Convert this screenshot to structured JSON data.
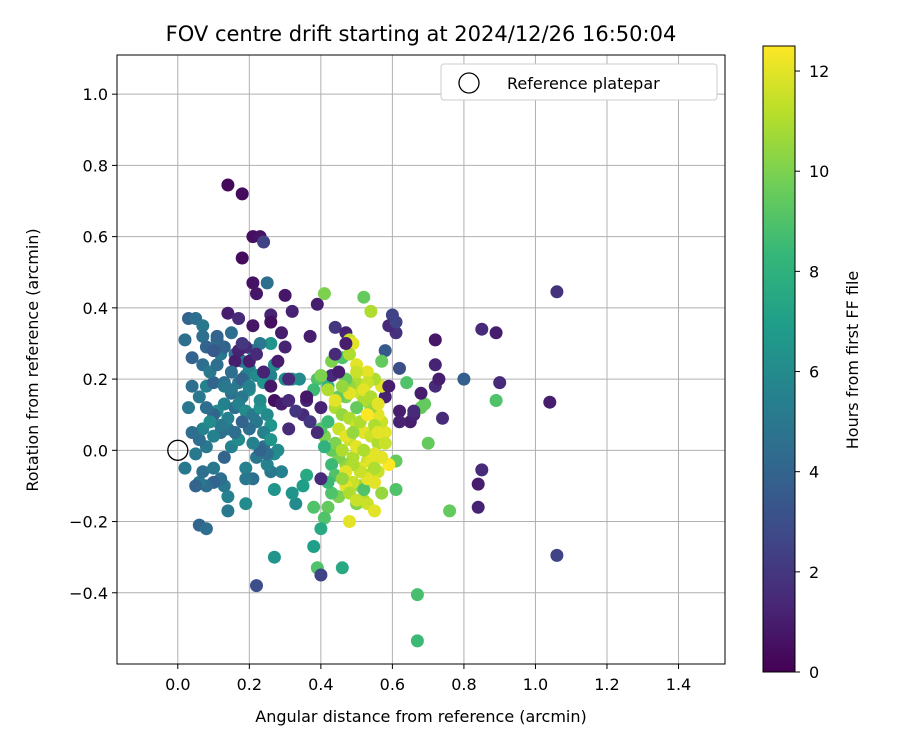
{
  "chart_data": {
    "type": "scatter",
    "title": "FOV centre drift starting at 2024/12/26 16:50:04",
    "xlabel": "Angular distance from reference (arcmin)",
    "ylabel": "Rotation from reference (arcmin)",
    "xlim": [
      -0.17,
      1.53
    ],
    "ylim": [
      -0.6,
      1.11
    ],
    "xticks": [
      0.0,
      0.2,
      0.4,
      0.6,
      0.8,
      1.0,
      1.2,
      1.4
    ],
    "xtick_labels": [
      "0.0",
      "0.2",
      "0.4",
      "0.6",
      "0.8",
      "1.0",
      "1.2",
      "1.4"
    ],
    "yticks": [
      -0.4,
      -0.2,
      0.0,
      0.2,
      0.4,
      0.6,
      0.8,
      1.0
    ],
    "ytick_labels": [
      "−0.4",
      "−0.2",
      "0.0",
      "0.2",
      "0.4",
      "0.6",
      "0.8",
      "1.0"
    ],
    "grid": true,
    "legend": {
      "position": "top-right",
      "label": "Reference platepar"
    },
    "reference_point": {
      "x": 0.0,
      "y": 0.0
    },
    "colorbar": {
      "label": "Hours from first FF file",
      "colormap": "viridis",
      "range": [
        0,
        12.5
      ],
      "ticks": [
        0,
        2,
        4,
        6,
        8,
        10,
        12
      ],
      "tick_labels": [
        "0",
        "2",
        "4",
        "6",
        "8",
        "10",
        "12"
      ]
    },
    "points": [
      [
        0.14,
        0.745,
        0.3
      ],
      [
        0.18,
        0.72,
        0.4
      ],
      [
        0.21,
        0.6,
        0.5
      ],
      [
        0.23,
        0.6,
        0.6
      ],
      [
        0.24,
        0.585,
        2.5
      ],
      [
        0.18,
        0.54,
        0.4
      ],
      [
        0.21,
        0.47,
        0.6
      ],
      [
        0.25,
        0.47,
        4.5
      ],
      [
        0.22,
        0.44,
        0.8
      ],
      [
        0.26,
        0.38,
        1.2
      ],
      [
        0.14,
        0.385,
        1.0
      ],
      [
        0.17,
        0.37,
        1.5
      ],
      [
        0.21,
        0.35,
        0.7
      ],
      [
        0.26,
        0.36,
        0.5
      ],
      [
        0.3,
        0.435,
        0.8
      ],
      [
        0.32,
        0.39,
        1.2
      ],
      [
        0.39,
        0.41,
        1.0
      ],
      [
        0.41,
        0.44,
        10.0
      ],
      [
        0.37,
        0.32,
        1.0
      ],
      [
        0.44,
        0.345,
        2.0
      ],
      [
        0.47,
        0.33,
        1.2
      ],
      [
        0.48,
        0.31,
        11.5
      ],
      [
        0.49,
        0.3,
        12.0
      ],
      [
        0.52,
        0.43,
        9.5
      ],
      [
        0.54,
        0.39,
        11.0
      ],
      [
        0.6,
        0.38,
        2.5
      ],
      [
        0.61,
        0.33,
        1.8
      ],
      [
        0.58,
        0.28,
        3.5
      ],
      [
        0.57,
        0.25,
        9.5
      ],
      [
        0.62,
        0.23,
        3.0
      ],
      [
        0.64,
        0.19,
        9.0
      ],
      [
        0.69,
        0.13,
        9.5
      ],
      [
        0.72,
        0.31,
        0.8
      ],
      [
        0.72,
        0.24,
        1.2
      ],
      [
        0.72,
        0.18,
        1.5
      ],
      [
        0.73,
        0.2,
        1.0
      ],
      [
        0.74,
        0.09,
        1.5
      ],
      [
        0.8,
        0.2,
        3.8
      ],
      [
        0.85,
        0.34,
        1.5
      ],
      [
        0.89,
        0.33,
        1.0
      ],
      [
        0.9,
        0.19,
        1.5
      ],
      [
        0.89,
        0.14,
        9.0
      ],
      [
        1.06,
        0.445,
        1.8
      ],
      [
        1.04,
        0.135,
        1.0
      ],
      [
        0.85,
        -0.055,
        1.5
      ],
      [
        0.84,
        -0.095,
        1.0
      ],
      [
        0.84,
        -0.16,
        1.2
      ],
      [
        1.06,
        -0.295,
        2.5
      ],
      [
        0.76,
        -0.17,
        9.5
      ],
      [
        0.67,
        -0.405,
        8.8
      ],
      [
        0.67,
        -0.535,
        8.5
      ],
      [
        0.7,
        0.02,
        9.5
      ],
      [
        0.68,
        0.12,
        9.5
      ],
      [
        0.65,
        0.08,
        1.0
      ],
      [
        0.66,
        0.1,
        1.2
      ],
      [
        0.62,
        0.11,
        1.0
      ],
      [
        0.61,
        -0.03,
        9.5
      ],
      [
        0.61,
        -0.11,
        9.0
      ],
      [
        0.58,
        0.15,
        1.2
      ],
      [
        0.57,
        0.18,
        12.0
      ],
      [
        0.55,
        0.2,
        11.0
      ],
      [
        0.53,
        0.22,
        12.0
      ],
      [
        0.51,
        0.16,
        11.5
      ],
      [
        0.5,
        0.19,
        11.0
      ],
      [
        0.48,
        0.18,
        10.5
      ],
      [
        0.47,
        0.15,
        10.0
      ],
      [
        0.45,
        0.15,
        9.5
      ],
      [
        0.44,
        0.12,
        11.0
      ],
      [
        0.46,
        0.1,
        10.5
      ],
      [
        0.48,
        0.09,
        11.0
      ],
      [
        0.5,
        0.07,
        11.5
      ],
      [
        0.52,
        0.05,
        12.0
      ],
      [
        0.54,
        0.04,
        11.5
      ],
      [
        0.56,
        0.02,
        11.0
      ],
      [
        0.55,
        -0.01,
        12.0
      ],
      [
        0.53,
        -0.03,
        11.5
      ],
      [
        0.51,
        -0.05,
        12.0
      ],
      [
        0.49,
        -0.02,
        11.0
      ],
      [
        0.47,
        -0.04,
        10.5
      ],
      [
        0.45,
        -0.02,
        10.0
      ],
      [
        0.43,
        0.0,
        9.5
      ],
      [
        0.41,
        0.04,
        10.0
      ],
      [
        0.4,
        0.06,
        9.0
      ],
      [
        0.42,
        0.08,
        8.5
      ],
      [
        0.44,
        0.02,
        10.0
      ],
      [
        0.46,
        0.0,
        11.0
      ],
      [
        0.48,
        0.03,
        11.5
      ],
      [
        0.5,
        0.01,
        12.0
      ],
      [
        0.52,
        0.0,
        11.0
      ],
      [
        0.54,
        -0.03,
        12.0
      ],
      [
        0.56,
        -0.06,
        11.5
      ],
      [
        0.55,
        -0.09,
        12.0
      ],
      [
        0.53,
        -0.07,
        11.0
      ],
      [
        0.51,
        -0.1,
        10.5
      ],
      [
        0.49,
        -0.09,
        11.5
      ],
      [
        0.47,
        -0.1,
        12.0
      ],
      [
        0.45,
        -0.13,
        10.0
      ],
      [
        0.43,
        -0.12,
        9.0
      ],
      [
        0.42,
        -0.16,
        9.5
      ],
      [
        0.41,
        -0.19,
        9.0
      ],
      [
        0.4,
        -0.22,
        7.5
      ],
      [
        0.38,
        -0.27,
        7.0
      ],
      [
        0.39,
        -0.33,
        9.0
      ],
      [
        0.4,
        -0.35,
        2.5
      ],
      [
        0.46,
        -0.33,
        7.5
      ],
      [
        0.48,
        -0.2,
        12.0
      ],
      [
        0.5,
        -0.15,
        10.0
      ],
      [
        0.52,
        -0.14,
        11.0
      ],
      [
        0.53,
        -0.15,
        11.5
      ],
      [
        0.55,
        -0.17,
        12.0
      ],
      [
        0.52,
        -0.11,
        9.0
      ],
      [
        0.57,
        -0.12,
        10.5
      ],
      [
        0.59,
        -0.04,
        12.5
      ],
      [
        0.58,
        0.05,
        12.0
      ],
      [
        0.57,
        0.08,
        11.5
      ],
      [
        0.56,
        0.1,
        12.0
      ],
      [
        0.54,
        0.12,
        10.5
      ],
      [
        0.52,
        0.14,
        11.0
      ],
      [
        0.5,
        0.12,
        9.5
      ],
      [
        0.47,
        0.2,
        9.5
      ],
      [
        0.43,
        0.25,
        10.0
      ],
      [
        0.46,
        0.26,
        9.0
      ],
      [
        0.48,
        0.27,
        11.0
      ],
      [
        0.5,
        0.24,
        12.0
      ],
      [
        0.53,
        0.19,
        11.5
      ],
      [
        0.42,
        0.18,
        8.0
      ],
      [
        0.39,
        0.2,
        9.0
      ],
      [
        0.38,
        0.17,
        8.5
      ],
      [
        0.36,
        0.14,
        1.2
      ],
      [
        0.35,
        0.1,
        1.5
      ],
      [
        0.37,
        0.08,
        2.0
      ],
      [
        0.39,
        0.05,
        1.5
      ],
      [
        0.41,
        0.01,
        8.0
      ],
      [
        0.43,
        -0.04,
        8.5
      ],
      [
        0.44,
        -0.07,
        9.0
      ],
      [
        0.42,
        -0.09,
        8.5
      ],
      [
        0.4,
        -0.08,
        1.5
      ],
      [
        0.38,
        -0.16,
        9.0
      ],
      [
        0.36,
        -0.07,
        7.5
      ],
      [
        0.35,
        -0.1,
        7.0
      ],
      [
        0.33,
        -0.15,
        6.0
      ],
      [
        0.32,
        -0.12,
        6.5
      ],
      [
        0.29,
        -0.06,
        5.5
      ],
      [
        0.27,
        -0.11,
        6.5
      ],
      [
        0.26,
        -0.06,
        5.0
      ],
      [
        0.25,
        -0.04,
        5.5
      ],
      [
        0.27,
        -0.01,
        6.0
      ],
      [
        0.24,
        0.01,
        4.5
      ],
      [
        0.22,
        -0.02,
        5.0
      ],
      [
        0.21,
        -0.08,
        4.5
      ],
      [
        0.19,
        -0.05,
        5.5
      ],
      [
        0.19,
        -0.15,
        6.0
      ],
      [
        0.22,
        -0.38,
        3.0
      ],
      [
        0.27,
        -0.3,
        6.5
      ],
      [
        0.14,
        -0.17,
        5.0
      ],
      [
        0.14,
        -0.13,
        5.5
      ],
      [
        0.13,
        -0.1,
        5.0
      ],
      [
        0.12,
        -0.08,
        4.5
      ],
      [
        0.1,
        -0.09,
        4.0
      ],
      [
        0.08,
        -0.1,
        4.5
      ],
      [
        0.06,
        -0.09,
        5.0
      ],
      [
        0.05,
        -0.1,
        4.0
      ],
      [
        0.07,
        -0.06,
        4.5
      ],
      [
        0.1,
        -0.05,
        5.0
      ],
      [
        0.13,
        -0.02,
        4.0
      ],
      [
        0.15,
        0.01,
        5.5
      ],
      [
        0.17,
        0.03,
        6.0
      ],
      [
        0.14,
        0.06,
        5.0
      ],
      [
        0.12,
        0.05,
        4.5
      ],
      [
        0.1,
        0.04,
        5.5
      ],
      [
        0.08,
        0.01,
        5.0
      ],
      [
        0.06,
        0.03,
        4.5
      ],
      [
        0.07,
        0.06,
        5.5
      ],
      [
        0.09,
        0.08,
        5.0
      ],
      [
        0.11,
        0.11,
        6.0
      ],
      [
        0.13,
        0.13,
        5.5
      ],
      [
        0.15,
        0.16,
        4.5
      ],
      [
        0.17,
        0.19,
        5.0
      ],
      [
        0.19,
        0.21,
        5.5
      ],
      [
        0.2,
        0.17,
        6.0
      ],
      [
        0.18,
        0.15,
        5.0
      ],
      [
        0.16,
        0.12,
        4.5
      ],
      [
        0.14,
        0.09,
        5.5
      ],
      [
        0.12,
        0.07,
        5.0
      ],
      [
        0.1,
        0.1,
        4.0
      ],
      [
        0.08,
        0.12,
        4.5
      ],
      [
        0.06,
        0.15,
        5.0
      ],
      [
        0.04,
        0.18,
        4.5
      ],
      [
        0.03,
        0.12,
        5.0
      ],
      [
        0.08,
        0.18,
        5.5
      ],
      [
        0.1,
        0.19,
        4.0
      ],
      [
        0.13,
        0.19,
        4.5
      ],
      [
        0.15,
        0.17,
        5.0
      ],
      [
        0.17,
        0.13,
        5.5
      ],
      [
        0.19,
        0.11,
        6.0
      ],
      [
        0.21,
        0.1,
        5.0
      ],
      [
        0.23,
        0.12,
        6.5
      ],
      [
        0.25,
        0.1,
        6.0
      ],
      [
        0.26,
        0.07,
        6.5
      ],
      [
        0.24,
        0.05,
        5.5
      ],
      [
        0.22,
        0.08,
        5.0
      ],
      [
        0.2,
        0.06,
        4.5
      ],
      [
        0.18,
        0.08,
        4.0
      ],
      [
        0.16,
        0.05,
        4.5
      ],
      [
        0.04,
        0.26,
        4.0
      ],
      [
        0.07,
        0.24,
        4.5
      ],
      [
        0.09,
        0.22,
        5.0
      ],
      [
        0.11,
        0.24,
        4.5
      ],
      [
        0.12,
        0.27,
        5.0
      ],
      [
        0.11,
        0.31,
        4.5
      ],
      [
        0.13,
        0.29,
        4.0
      ],
      [
        0.16,
        0.27,
        4.5
      ],
      [
        0.18,
        0.25,
        5.0
      ],
      [
        0.2,
        0.23,
        5.5
      ],
      [
        0.22,
        0.21,
        6.0
      ],
      [
        0.24,
        0.19,
        6.5
      ],
      [
        0.26,
        0.21,
        5.5
      ],
      [
        0.27,
        0.24,
        6.0
      ],
      [
        0.26,
        0.3,
        6.5
      ],
      [
        0.23,
        0.3,
        5.0
      ],
      [
        0.21,
        0.28,
        4.5
      ],
      [
        0.19,
        0.29,
        1.5
      ],
      [
        0.17,
        0.28,
        1.2
      ],
      [
        0.16,
        0.25,
        1.0
      ],
      [
        0.02,
        0.31,
        4.5
      ],
      [
        0.03,
        0.37,
        4.0
      ],
      [
        0.05,
        0.37,
        4.5
      ],
      [
        0.07,
        0.35,
        5.0
      ],
      [
        0.07,
        0.32,
        4.5
      ],
      [
        0.08,
        0.29,
        4.0
      ],
      [
        0.1,
        0.28,
        3.5
      ],
      [
        0.11,
        0.32,
        4.0
      ],
      [
        0.15,
        0.33,
        4.5
      ],
      [
        0.18,
        0.3,
        2.0
      ],
      [
        0.2,
        0.25,
        1.0
      ],
      [
        0.22,
        0.27,
        1.5
      ],
      [
        0.24,
        0.22,
        1.2
      ],
      [
        0.26,
        0.18,
        0.8
      ],
      [
        0.27,
        0.14,
        0.5
      ],
      [
        0.29,
        0.13,
        1.0
      ],
      [
        0.3,
        0.2,
        6.0
      ],
      [
        0.32,
        0.2,
        6.5
      ],
      [
        0.34,
        0.2,
        6.0
      ],
      [
        0.31,
        0.14,
        1.5
      ],
      [
        0.33,
        0.11,
        2.0
      ],
      [
        0.31,
        0.06,
        1.5
      ],
      [
        0.28,
        0.25,
        1.0
      ],
      [
        0.3,
        0.29,
        1.2
      ],
      [
        0.29,
        0.33,
        1.0
      ],
      [
        0.31,
        0.2,
        1.5
      ],
      [
        0.36,
        0.15,
        0.8
      ],
      [
        0.4,
        0.12,
        1.2
      ],
      [
        0.43,
        0.21,
        1.5
      ],
      [
        0.45,
        0.22,
        1.0
      ],
      [
        0.44,
        0.27,
        1.5
      ],
      [
        0.47,
        0.3,
        1.0
      ],
      [
        0.59,
        0.35,
        1.5
      ],
      [
        0.61,
        0.36,
        2.5
      ],
      [
        0.59,
        0.18,
        1.0
      ],
      [
        0.62,
        0.08,
        1.2
      ],
      [
        0.66,
        0.11,
        1.5
      ],
      [
        0.68,
        0.16,
        1.0
      ],
      [
        0.19,
        -0.08,
        5.0
      ],
      [
        0.02,
        -0.05,
        5.0
      ],
      [
        0.04,
        0.05,
        4.5
      ],
      [
        0.06,
        -0.21,
        4.0
      ],
      [
        0.08,
        -0.22,
        4.5
      ],
      [
        0.05,
        -0.01,
        5.0
      ],
      [
        0.09,
        0.08,
        6.0
      ],
      [
        0.13,
        0.18,
        5.0
      ],
      [
        0.15,
        0.22,
        4.5
      ],
      [
        0.18,
        0.2,
        4.0
      ],
      [
        0.2,
        0.18,
        5.5
      ],
      [
        0.23,
        0.14,
        6.0
      ],
      [
        0.26,
        0.03,
        6.5
      ],
      [
        0.28,
        0.0,
        6.0
      ],
      [
        0.25,
        -0.01,
        4.5
      ],
      [
        0.23,
        0.0,
        4.0
      ],
      [
        0.21,
        0.02,
        5.5
      ],
      [
        0.4,
        0.21,
        10.0
      ],
      [
        0.42,
        0.17,
        11.0
      ],
      [
        0.44,
        0.14,
        12.0
      ],
      [
        0.45,
        0.06,
        11.5
      ],
      [
        0.47,
        0.04,
        12.0
      ],
      [
        0.49,
        0.05,
        10.5
      ],
      [
        0.51,
        0.08,
        11.0
      ],
      [
        0.53,
        0.1,
        12.5
      ],
      [
        0.55,
        0.07,
        11.0
      ],
      [
        0.56,
        0.05,
        12.0
      ],
      [
        0.58,
        0.02,
        11.5
      ],
      [
        0.57,
        -0.02,
        12.0
      ],
      [
        0.55,
        -0.05,
        11.0
      ],
      [
        0.53,
        -0.08,
        12.0
      ],
      [
        0.51,
        -0.06,
        11.5
      ],
      [
        0.49,
        -0.04,
        11.0
      ],
      [
        0.47,
        -0.06,
        12.0
      ],
      [
        0.46,
        -0.08,
        10.5
      ],
      [
        0.48,
        -0.12,
        11.0
      ],
      [
        0.5,
        -0.14,
        11.5
      ],
      [
        0.52,
        0.17,
        12.0
      ],
      [
        0.54,
        0.15,
        11.0
      ],
      [
        0.56,
        0.13,
        12.0
      ],
      [
        0.5,
        0.22,
        11.5
      ],
      [
        0.48,
        0.16,
        12.0
      ],
      [
        0.46,
        0.18,
        10.5
      ]
    ]
  }
}
